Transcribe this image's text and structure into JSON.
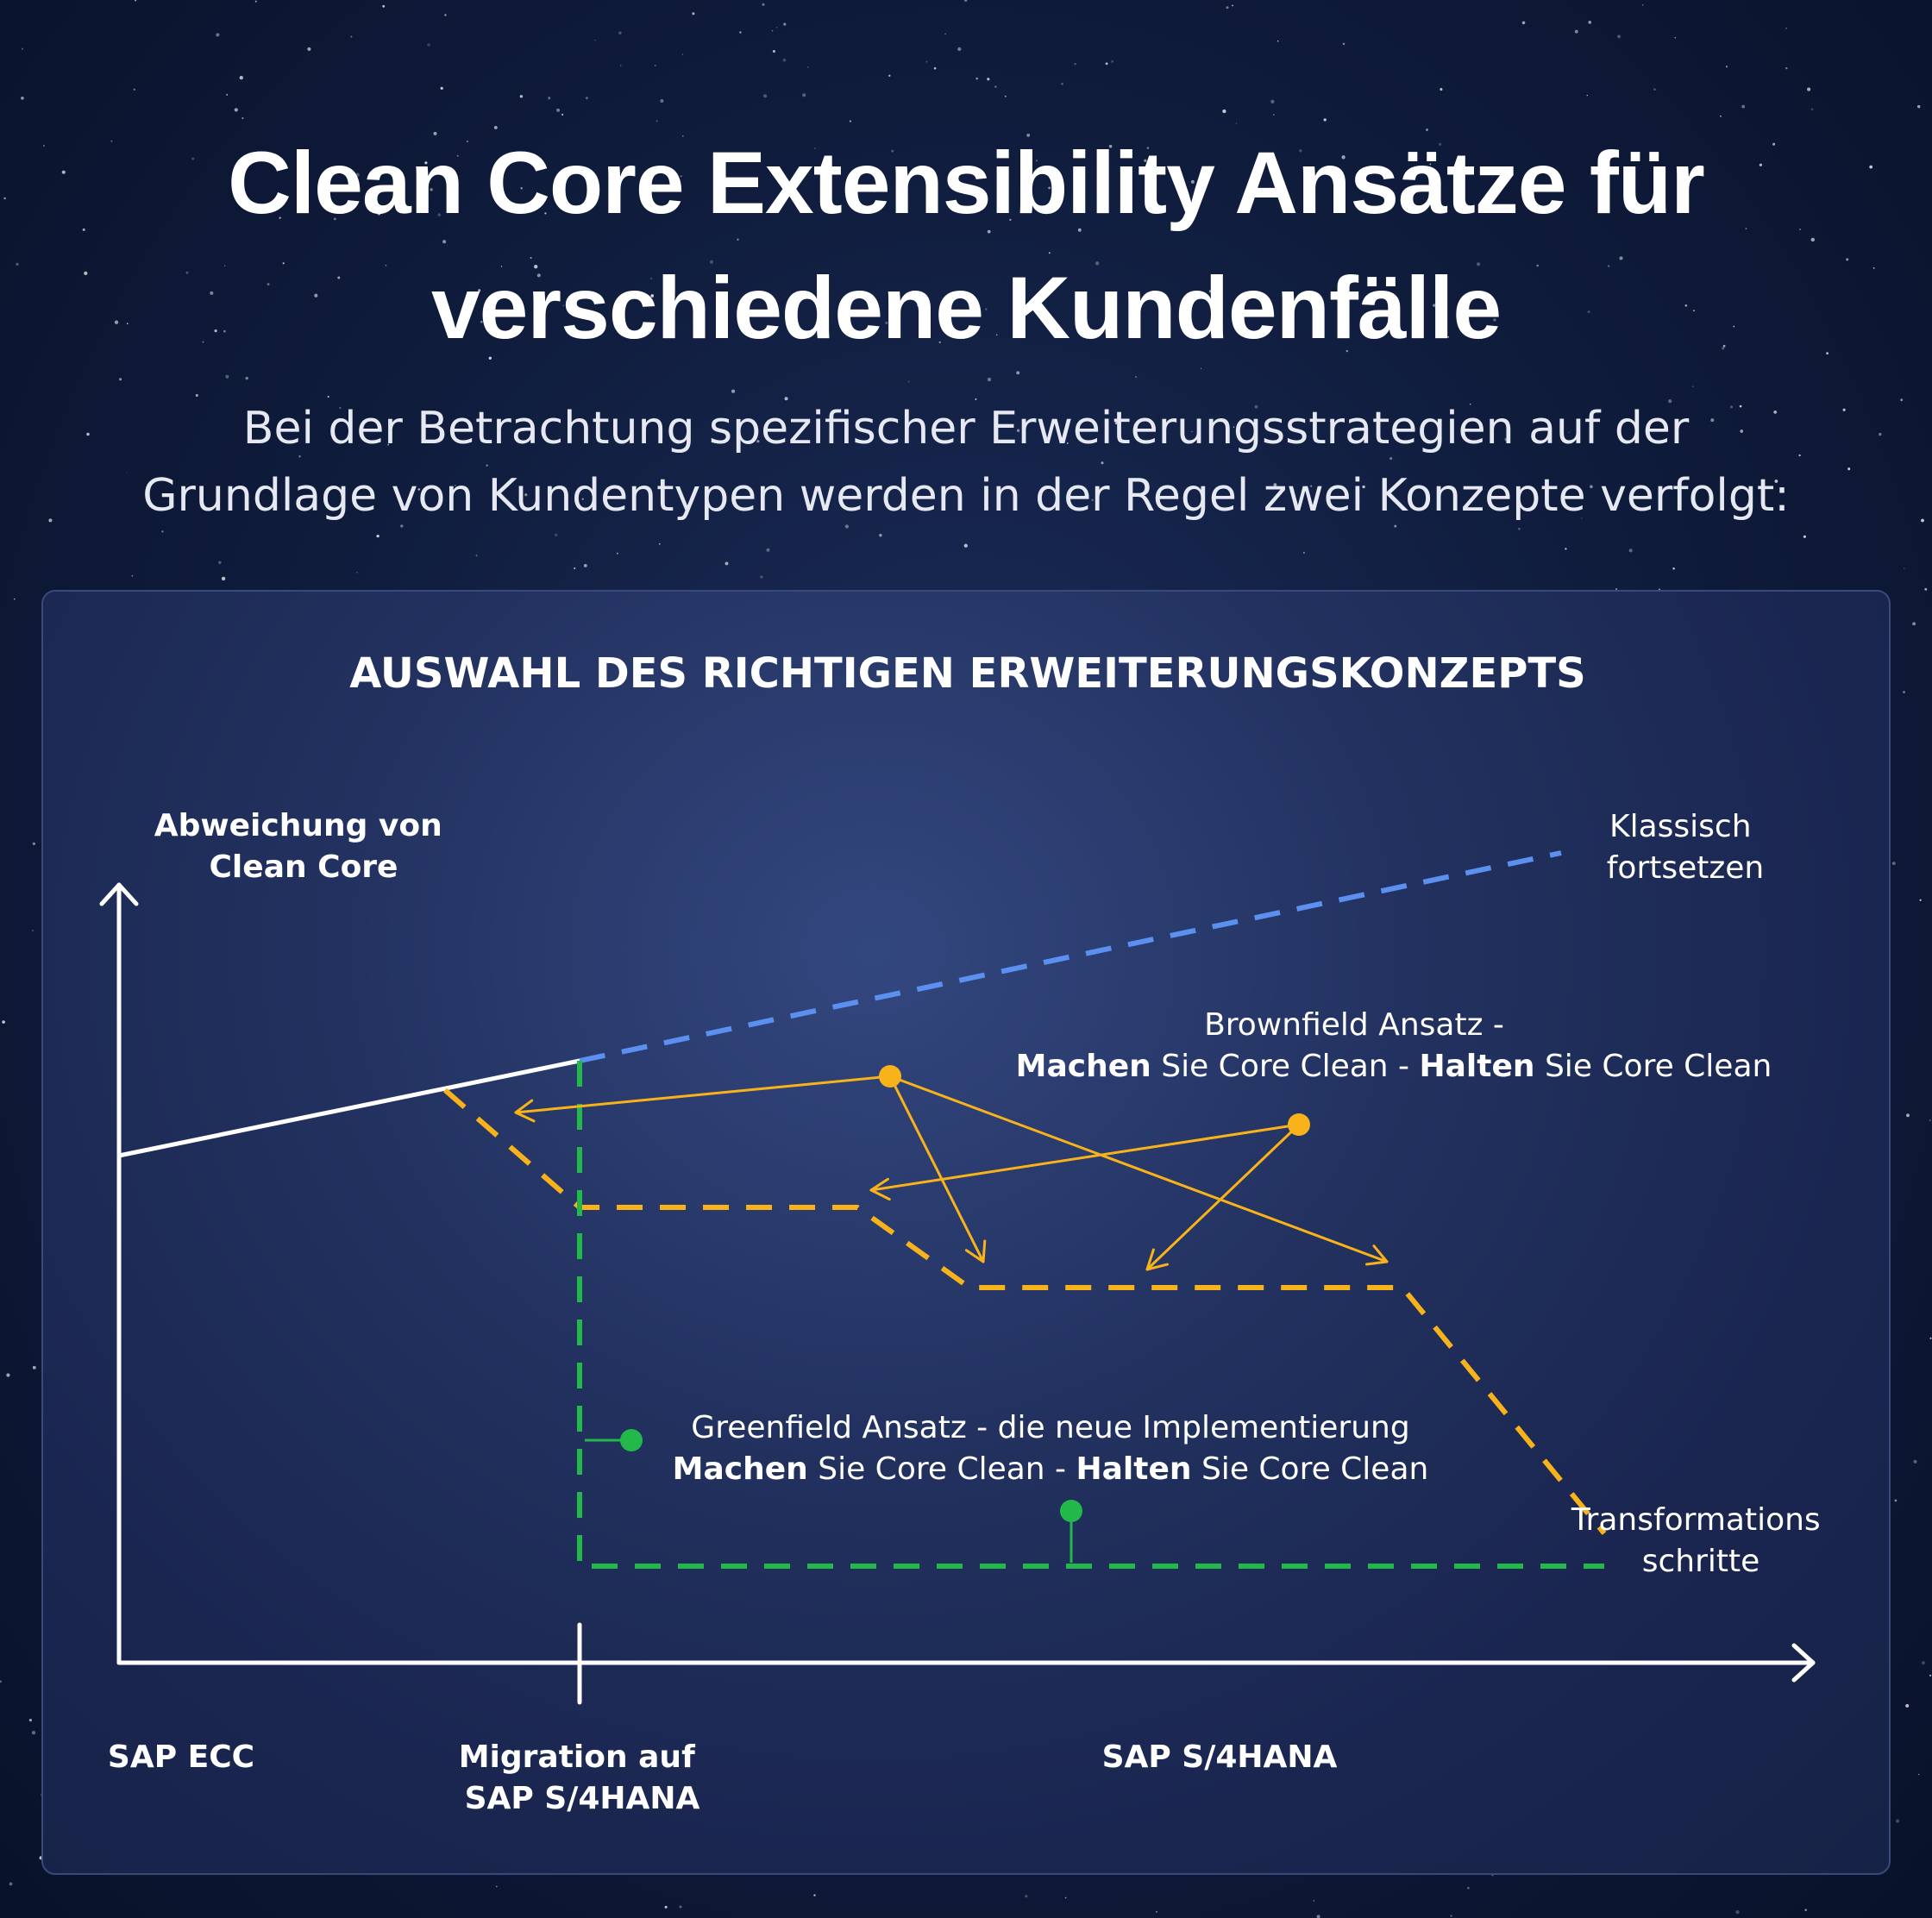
{
  "title_line1": "Clean Core Extensibility Ansätze für",
  "title_line2": "verschiedene Kundenfälle",
  "subtitle_line1": "Bei der Betrachtung spezifischer Erweiterungsstrategien auf der",
  "subtitle_line2": "Grundlage von Kundentypen werden in der Regel zwei Konzepte verfolgt:",
  "panel": {
    "heading": "AUSWAHL DES RICHTIGEN ERWEITERUNGSKONZEPTS",
    "y_axis_label_line1": "Abweichung von",
    "y_axis_label_line2": "Clean Core",
    "x_labels": {
      "ecc": "SAP ECC",
      "migration_line1": "Migration auf",
      "migration_line2": "SAP S/4HANA",
      "s4hana": "SAP S/4HANA"
    },
    "classic": {
      "line1": "Klassisch",
      "line2": "fortsetzen"
    },
    "brownfield": {
      "line1": "Brownfield Ansatz -",
      "line2_bold1": "Machen",
      "line2_text1": " Sie Core Clean - ",
      "line2_bold2": "Halten",
      "line2_text2": " Sie Core Clean"
    },
    "greenfield": {
      "line1": "Greenfield Ansatz - die neue Implementierung",
      "line2_bold1": "Machen",
      "line2_text1": " Sie Core Clean - ",
      "line2_bold2": "Halten",
      "line2_text2": " Sie Core Clean"
    },
    "transformation": {
      "line1": "Transformations",
      "line2": "schritte"
    }
  },
  "colors": {
    "background": "#0f1c3c",
    "panel": "#22315f",
    "blue_dashed": "#5b8ff0",
    "orange": "#f9b31a",
    "green": "#22b84a",
    "white": "#ffffff"
  }
}
